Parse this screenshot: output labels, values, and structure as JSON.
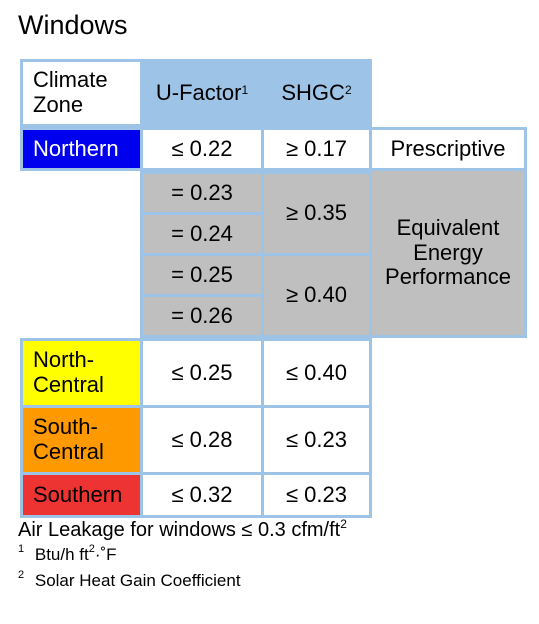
{
  "title": "Windows",
  "header": {
    "climate_zone": "Climate Zone",
    "u_factor": "U-Factor",
    "u_factor_note": "1",
    "shgc": "SHGC",
    "shgc_note": "2"
  },
  "zones": {
    "northern": {
      "label": "Northern",
      "u": "≤ 0.22",
      "shgc": "≥ 0.17",
      "color": "#0000ee"
    },
    "north_central": {
      "label": "North-Central",
      "u": "≤ 0.25",
      "shgc": "≤ 0.40",
      "color": "#ffff00"
    },
    "south_central": {
      "label": "South-Central",
      "u": "≤ 0.28",
      "shgc": "≤ 0.23",
      "color": "#ff9900"
    },
    "southern": {
      "label": "Southern",
      "u": "≤ 0.32",
      "shgc": "≤ 0.23",
      "color": "#ee3333"
    }
  },
  "equivalent": {
    "u_values": [
      "= 0.23",
      "= 0.24",
      "= 0.25",
      "= 0.26"
    ],
    "shgc_values": [
      "≥ 0.35",
      "≥ 0.40"
    ],
    "label": "Equivalent Energy Performance"
  },
  "prescriptive": "Prescriptive",
  "footer": {
    "air_leakage": "Air Leakage for windows ≤ 0.3 cfm/ft",
    "air_leakage_exp": "2"
  },
  "notes": [
    {
      "mark": "1",
      "text": "Btu/h ft",
      "exp": "2",
      "text2": "·˚F"
    },
    {
      "mark": "2",
      "text": "Solar Heat Gain Coefficient"
    }
  ]
}
